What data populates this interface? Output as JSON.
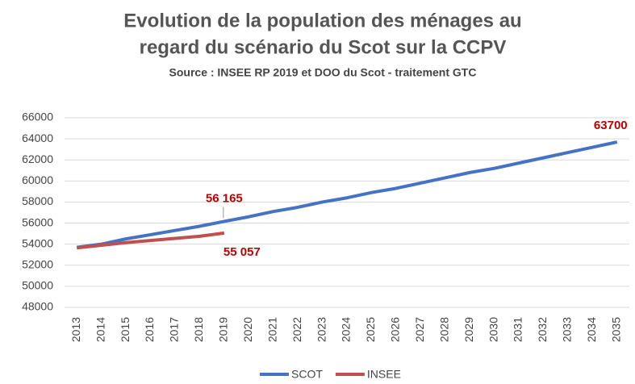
{
  "chart_data": {
    "type": "line",
    "title": [
      "Evolution de la population des ménages au",
      "regard du scénario du Scot sur la CCPV"
    ],
    "subtitle": "Source : INSEE RP 2019 et DOO du Scot - traitement GTC",
    "categories": [
      "2013",
      "2014",
      "2015",
      "2016",
      "2017",
      "2018",
      "2019",
      "2020",
      "2021",
      "2022",
      "2023",
      "2024",
      "2025",
      "2026",
      "2027",
      "2028",
      "2029",
      "2030",
      "2031",
      "2032",
      "2033",
      "2034",
      "2035"
    ],
    "series": [
      {
        "name": "SCOT",
        "color": "#4472c4",
        "values": [
          53700,
          54000,
          54500,
          54900,
          55300,
          55700,
          56165,
          56600,
          57100,
          57500,
          58000,
          58400,
          58900,
          59300,
          59800,
          60300,
          60800,
          61200,
          61700,
          62200,
          62700,
          63200,
          63700
        ],
        "value_labels": [
          null,
          null,
          null,
          null,
          null,
          null,
          "56 165",
          null,
          null,
          null,
          null,
          null,
          null,
          null,
          null,
          null,
          null,
          null,
          null,
          null,
          null,
          null,
          "63700"
        ]
      },
      {
        "name": "INSEE",
        "color": "#c0504d",
        "values": [
          53650,
          53900,
          54150,
          54350,
          54550,
          54750,
          55057,
          null,
          null,
          null,
          null,
          null,
          null,
          null,
          null,
          null,
          null,
          null,
          null,
          null,
          null,
          null,
          null
        ],
        "value_labels": [
          null,
          null,
          null,
          null,
          null,
          null,
          "55 057",
          null,
          null,
          null,
          null,
          null,
          null,
          null,
          null,
          null,
          null,
          null,
          null,
          null,
          null,
          null,
          null
        ]
      }
    ],
    "ylim": [
      48000,
      66000
    ],
    "yticks": [
      48000,
      50000,
      52000,
      54000,
      56000,
      58000,
      60000,
      62000,
      64000,
      66000
    ],
    "grid": true,
    "legend": "bottom"
  }
}
